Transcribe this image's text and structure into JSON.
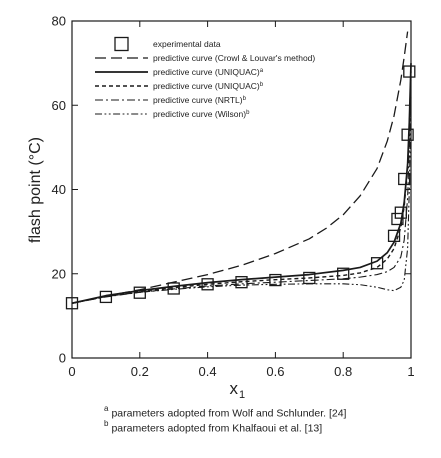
{
  "chart_data": {
    "type": "line",
    "xlabel": "x",
    "xlabel_sub": "1",
    "ylabel": "flash point (°C)",
    "xlim": [
      0,
      1
    ],
    "ylim": [
      0,
      80
    ],
    "x_ticks": [
      0,
      0.2,
      0.4,
      0.6,
      0.8,
      1
    ],
    "x_tick_labels": [
      "0",
      "0.2",
      "0.4",
      "0.6",
      "0.8",
      "1"
    ],
    "y_ticks": [
      0,
      20,
      40,
      60,
      80
    ],
    "y_tick_labels": [
      "0",
      "20",
      "40",
      "60",
      "80"
    ],
    "grid": false,
    "legend_position": "top-left",
    "experimental": {
      "name": "experimental data",
      "x": [
        0,
        0.1,
        0.2,
        0.3,
        0.4,
        0.5,
        0.6,
        0.7,
        0.8,
        0.9,
        0.95,
        0.96,
        0.97,
        0.98,
        0.99,
        0.995
      ],
      "y": [
        13,
        14.5,
        15.5,
        16.5,
        17.5,
        18,
        18.5,
        19,
        20,
        22.5,
        29,
        33,
        34.5,
        42.5,
        53,
        68
      ]
    },
    "series": [
      {
        "name": "predictive curve (Crowl & Louvar's method)",
        "style": "long-dash",
        "x": [
          0,
          0.1,
          0.2,
          0.3,
          0.4,
          0.5,
          0.6,
          0.7,
          0.75,
          0.8,
          0.85,
          0.9,
          0.93,
          0.95,
          0.97,
          0.98,
          0.99
        ],
        "y": [
          13,
          14.7,
          16.2,
          18,
          19.8,
          22,
          24.8,
          28.3,
          30.8,
          34,
          38.5,
          45,
          51.5,
          57.5,
          66,
          71.5,
          77.5
        ]
      },
      {
        "name": "predictive curve (UNIQUAC)",
        "sup": "a",
        "style": "solid",
        "x": [
          0,
          0.1,
          0.2,
          0.3,
          0.4,
          0.5,
          0.6,
          0.7,
          0.8,
          0.85,
          0.9,
          0.93,
          0.95,
          0.97,
          0.98,
          0.99,
          0.995,
          1.0
        ],
        "y": [
          13,
          14.8,
          16,
          17,
          17.9,
          18.6,
          19.2,
          19.8,
          20.8,
          21.5,
          23,
          25,
          27.5,
          32,
          37,
          46,
          56,
          70
        ]
      },
      {
        "name": "predictive curve (UNIQUAC)",
        "sup": "b",
        "style": "short-dash",
        "x": [
          0,
          0.1,
          0.2,
          0.3,
          0.4,
          0.5,
          0.6,
          0.7,
          0.8,
          0.85,
          0.9,
          0.93,
          0.95,
          0.97,
          0.98,
          0.99,
          0.995,
          1.0
        ],
        "y": [
          13,
          14.6,
          15.8,
          16.7,
          17.5,
          18.1,
          18.6,
          19,
          19.6,
          20.2,
          21.5,
          23.5,
          26,
          31,
          36,
          45,
          55,
          68
        ]
      },
      {
        "name": "predictive curve (NRTL)",
        "sup": "b",
        "style": "dash-dot",
        "x": [
          0,
          0.1,
          0.2,
          0.3,
          0.4,
          0.5,
          0.6,
          0.7,
          0.8,
          0.85,
          0.9,
          0.93,
          0.95,
          0.97,
          0.98,
          0.99,
          0.995,
          1.0
        ],
        "y": [
          13,
          14.5,
          15.6,
          16.4,
          17.1,
          17.6,
          18,
          18.4,
          18.8,
          19.2,
          19.8,
          20.5,
          21.5,
          24,
          28,
          38,
          50,
          66
        ]
      },
      {
        "name": "predictive curve (Wilson)",
        "sup": "b",
        "style": "dash-dot-dot",
        "x": [
          0,
          0.1,
          0.2,
          0.3,
          0.4,
          0.5,
          0.6,
          0.7,
          0.8,
          0.85,
          0.9,
          0.93,
          0.95,
          0.97,
          0.98,
          0.99,
          0.995,
          1.0
        ],
        "y": [
          13,
          14.6,
          15.6,
          16.3,
          16.9,
          17.3,
          17.5,
          17.6,
          17.6,
          17.4,
          16.8,
          16.2,
          16,
          16.8,
          18.5,
          26,
          40,
          62
        ]
      }
    ]
  },
  "footnotes": {
    "a_marker": "a",
    "a_text": "parameters adopted from Wolf and Schlunder. [24]",
    "b_marker": "b",
    "b_text": "parameters adopted from Khalfaoui et al. [13]"
  },
  "colors": {
    "ink": "#1a1a1a",
    "background": "#ffffff"
  }
}
